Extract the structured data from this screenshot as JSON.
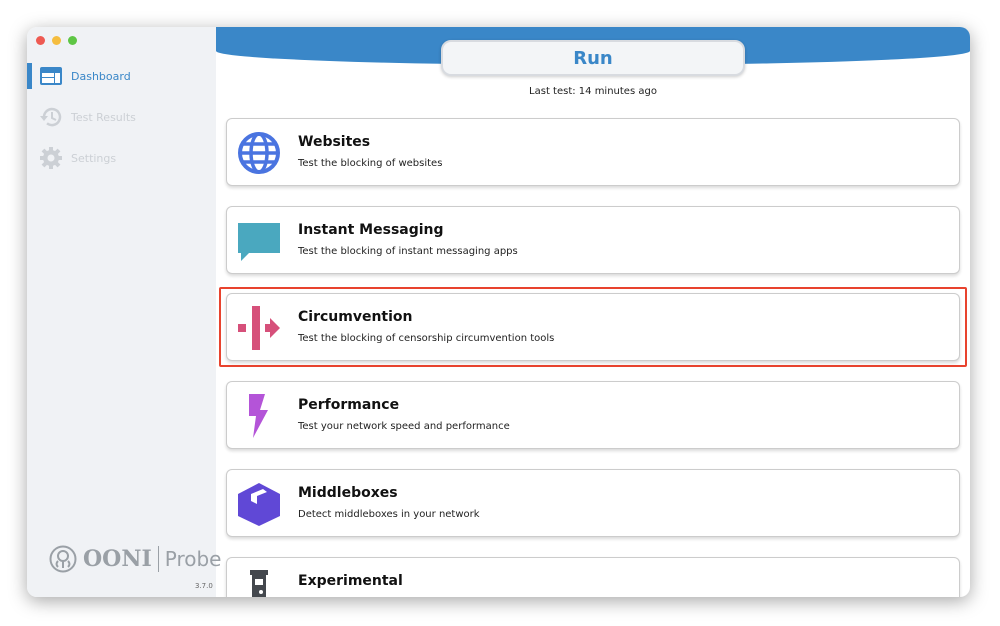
{
  "sidebar": {
    "items": [
      {
        "label": "Dashboard",
        "icon": "dashboard-icon",
        "active": true
      },
      {
        "label": "Test Results",
        "icon": "history-icon"
      },
      {
        "label": "Settings",
        "icon": "gear-icon"
      }
    ],
    "logo": {
      "brand": "OONI",
      "product": "Probe"
    },
    "version": "3.7.0"
  },
  "header": {
    "run_label": "Run",
    "last_test": "Last test:  14 minutes ago"
  },
  "cards": [
    {
      "title": "Websites",
      "description": "Test the blocking of websites",
      "icon": "globe-icon",
      "color": "#4a74e0"
    },
    {
      "title": "Instant Messaging",
      "description": "Test the blocking of instant messaging apps",
      "icon": "chat-bubble-icon",
      "color": "#4aa8bf"
    },
    {
      "title": "Circumvention",
      "description": "Test the blocking of censorship circumvention tools",
      "icon": "circumvention-icon",
      "color": "#d6507a"
    },
    {
      "title": "Performance",
      "description": "Test your network speed and performance",
      "icon": "lightning-icon",
      "color": "#b454d8"
    },
    {
      "title": "Middleboxes",
      "description": "Detect middleboxes in your network",
      "icon": "box-icon",
      "color": "#6048d6"
    },
    {
      "title": "Experimental",
      "description": "",
      "icon": "test-tube-icon",
      "color": "#44484e"
    }
  ],
  "colors": {
    "accent": "#3a87c8",
    "highlight": "#e8432e"
  }
}
